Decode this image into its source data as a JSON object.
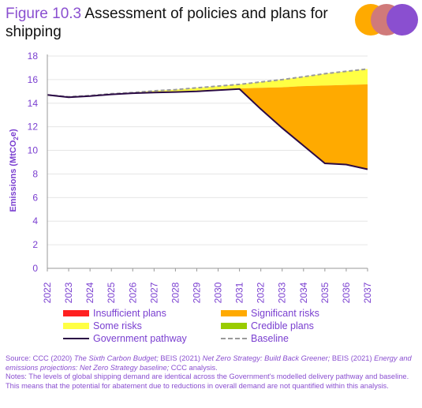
{
  "figure": {
    "number": "Figure 10.3",
    "title": "Assessment of policies and plans for shipping"
  },
  "colors": {
    "accent": "#8a4fd0",
    "significant_risks": "#ffaa00",
    "some_risks": "#ffff44",
    "insufficient_plans": "#ff2020",
    "credible_plans": "#99cc00",
    "government_pathway": "#2a0a45",
    "baseline": "#9a9a9a",
    "logo": [
      "#ffaa00",
      "#d07a7a",
      "#8a4fd0"
    ]
  },
  "chart_data": {
    "type": "area",
    "xlabel": "",
    "ylabel": "Emissions (MtCO2e)",
    "ylim": [
      0,
      18
    ],
    "yticks": [
      "0",
      "2",
      "4",
      "6",
      "8",
      "10",
      "12",
      "14",
      "16",
      "18"
    ],
    "categories": [
      "2022",
      "2023",
      "2024",
      "2025",
      "2026",
      "2027",
      "2028",
      "2029",
      "2030",
      "2031",
      "2032",
      "2033",
      "2034",
      "2035",
      "2036",
      "2037"
    ],
    "grid": true,
    "series": [
      {
        "name": "Government pathway",
        "style": "line",
        "values": [
          14.7,
          14.5,
          14.6,
          14.75,
          14.85,
          14.9,
          14.95,
          15.0,
          15.1,
          15.2,
          13.5,
          11.9,
          10.4,
          8.9,
          8.8,
          8.4
        ]
      },
      {
        "name": "Baseline",
        "style": "dashed",
        "values": [
          14.7,
          14.55,
          14.65,
          14.8,
          14.9,
          15.05,
          15.15,
          15.3,
          15.45,
          15.6,
          15.8,
          16.0,
          16.25,
          16.5,
          16.7,
          16.9
        ]
      },
      {
        "name": "Significant risks",
        "style": "area",
        "values": [
          14.7,
          14.5,
          14.6,
          14.75,
          14.85,
          14.9,
          14.95,
          15.0,
          15.1,
          15.25,
          15.3,
          15.35,
          15.45,
          15.5,
          15.55,
          15.6
        ]
      },
      {
        "name": "Some risks",
        "style": "area",
        "values": [
          14.7,
          14.55,
          14.65,
          14.8,
          14.9,
          15.05,
          15.15,
          15.3,
          15.45,
          15.6,
          15.8,
          16.0,
          16.25,
          16.5,
          16.7,
          16.9
        ]
      }
    ],
    "legend": {
      "placement": "bottom",
      "items": [
        {
          "label": "Insufficient plans",
          "kind": "swatch",
          "color": "#ff2020"
        },
        {
          "label": "Significant risks",
          "kind": "swatch",
          "color": "#ffaa00"
        },
        {
          "label": "Some risks",
          "kind": "swatch",
          "color": "#ffff44"
        },
        {
          "label": "Credible plans",
          "kind": "swatch",
          "color": "#99cc00"
        },
        {
          "label": "Government pathway",
          "kind": "line",
          "color": "#2a0a45"
        },
        {
          "label": "Baseline",
          "kind": "dashed",
          "color": "#9a9a9a"
        }
      ]
    }
  },
  "notes": {
    "source_prefix": "Source: CCC (2020) ",
    "source_ref1": "The Sixth Carbon Budget;",
    "source_mid1": " BEIS (2021) ",
    "source_ref2": "Net Zero Strategy: Build Back Greener;",
    "source_mid2": " BEIS (2021) ",
    "source_ref3": "Energy and emissions projections: Net Zero Strategy baseline;",
    "source_end": " CCC analysis.",
    "notes_text": "Notes: The levels of global shipping demand are identical across the Government's modelled delivery pathway and baseline. This means that the potential for abatement due to reductions in overall demand are not quantified within this analysis."
  }
}
